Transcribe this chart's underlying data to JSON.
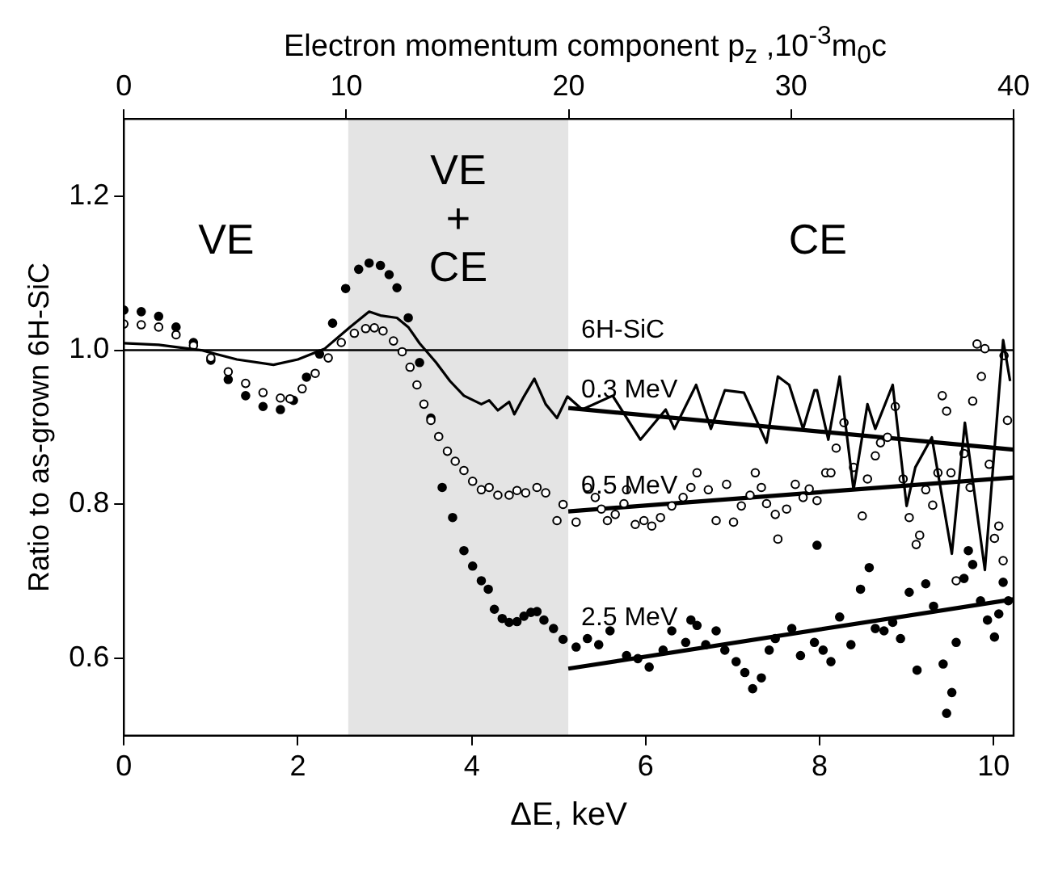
{
  "chart_data": {
    "type": "scatter",
    "xlabel": "ΔE, keV",
    "ylabel": "Ratio to as-grown 6H-SiC",
    "x2label": "Electron momentum component p$_{z}$ ,10$^{-3}$m$_{0}$c",
    "xlim": [
      0,
      10.23
    ],
    "xticks": [
      0,
      2,
      4,
      6,
      8,
      10
    ],
    "x2lim": [
      0,
      40
    ],
    "x2ticks": [
      0,
      10,
      20,
      30,
      40
    ],
    "ylim": [
      0.5,
      1.3
    ],
    "yticks": [
      {
        "value": 0.6,
        "label": "0.6"
      },
      {
        "value": 0.8,
        "label": "0.8"
      },
      {
        "value": 1.0,
        "label": "1.0"
      },
      {
        "value": 1.2,
        "label": "1.2"
      }
    ],
    "grid": false,
    "legend": false,
    "annotations": [
      "VE",
      "CE"
    ],
    "bands": [
      {
        "axis": "x",
        "from": 2.58,
        "to": 5.11,
        "label": "VE + CE",
        "color": "#e4e4e4"
      }
    ],
    "ref_lines": [
      {
        "axis": "y",
        "value": 1.0,
        "label": "6H-SiC",
        "color": "#000000"
      }
    ],
    "series": [
      {
        "name": "0.3 MeV",
        "type": "line",
        "marker": "none",
        "color": "#000000",
        "x": [
          0,
          0.4,
          0.89,
          1.3,
          1.72,
          2.0,
          2.31,
          2.6,
          2.82,
          2.95,
          3.14,
          3.27,
          3.4,
          3.59,
          3.75,
          3.91,
          4.11,
          4.2,
          4.3,
          4.43,
          4.49,
          4.6,
          4.72,
          4.85,
          4.98,
          5.1,
          5.27,
          5.62,
          5.94,
          6.23,
          6.33,
          6.58,
          6.75,
          6.91,
          7.13,
          7.39,
          7.52,
          7.65,
          7.81,
          7.94,
          7.97,
          8.1,
          8.23,
          8.39,
          8.55,
          8.64,
          8.84,
          9.0,
          9.1,
          9.29,
          9.52,
          9.67,
          9.9,
          10.11,
          10.19
        ],
        "values": [
          1.009,
          1.007,
          1.0,
          0.988,
          0.981,
          0.988,
          1.002,
          1.03,
          1.05,
          1.045,
          1.042,
          1.03,
          1.009,
          0.984,
          0.96,
          0.941,
          0.93,
          0.935,
          0.922,
          0.933,
          0.917,
          0.94,
          0.963,
          0.93,
          0.912,
          0.94,
          0.923,
          0.941,
          0.884,
          0.923,
          0.898,
          0.955,
          0.898,
          0.948,
          0.945,
          0.88,
          0.966,
          0.955,
          0.898,
          0.948,
          0.948,
          0.884,
          0.966,
          0.819,
          0.93,
          0.898,
          0.955,
          0.798,
          0.848,
          0.887,
          0.736,
          0.906,
          0.715,
          1.013,
          0.96
        ]
      },
      {
        "name": "0.5 MeV",
        "marker": "circle",
        "color": "#000000",
        "x": [
          0,
          0.2,
          0.4,
          0.6,
          0.8,
          1.0,
          1.2,
          1.4,
          1.6,
          1.8,
          1.91,
          2.05,
          2.2,
          2.35,
          2.5,
          2.65,
          2.78,
          2.88,
          2.98,
          3.1,
          3.2,
          3.29,
          3.37,
          3.45,
          3.53,
          3.62,
          3.72,
          3.81,
          3.91,
          4.01,
          4.11,
          4.2,
          4.3,
          4.43,
          4.52,
          4.62,
          4.75,
          4.85,
          4.98,
          5.05,
          5.2,
          5.33,
          5.42,
          5.49,
          5.56,
          5.65,
          5.75,
          5.78,
          5.88,
          5.98,
          6.07,
          6.17,
          6.3,
          6.43,
          6.52,
          6.59,
          6.72,
          6.81,
          6.93,
          7.01,
          7.1,
          7.2,
          7.26,
          7.33,
          7.39,
          7.49,
          7.52,
          7.62,
          7.72,
          7.81,
          7.88,
          7.97,
          8.07,
          8.13,
          8.19,
          8.28,
          8.39,
          8.49,
          8.55,
          8.64,
          8.7,
          8.78,
          8.87,
          8.96,
          9.03,
          9.11,
          9.15,
          9.22,
          9.3,
          9.36,
          9.41,
          9.46,
          9.51,
          9.57,
          9.66,
          9.73,
          9.76,
          9.81,
          9.86,
          9.9,
          9.95,
          10.01,
          10.06,
          10.11,
          10.12,
          10.16
        ],
        "values": [
          1.034,
          1.033,
          1.03,
          1.02,
          1.006,
          0.99,
          0.972,
          0.957,
          0.945,
          0.938,
          0.937,
          0.95,
          0.97,
          0.99,
          1.01,
          1.022,
          1.028,
          1.029,
          1.025,
          1.012,
          0.998,
          0.978,
          0.955,
          0.93,
          0.909,
          0.888,
          0.869,
          0.856,
          0.844,
          0.83,
          0.819,
          0.822,
          0.812,
          0.812,
          0.818,
          0.815,
          0.822,
          0.815,
          0.779,
          0.8,
          0.777,
          0.822,
          0.809,
          0.794,
          0.779,
          0.787,
          0.801,
          0.819,
          0.774,
          0.779,
          0.772,
          0.783,
          0.798,
          0.809,
          0.822,
          0.841,
          0.819,
          0.779,
          0.826,
          0.777,
          0.798,
          0.812,
          0.841,
          0.822,
          0.801,
          0.787,
          0.755,
          0.794,
          0.826,
          0.809,
          0.82,
          0.805,
          0.841,
          0.841,
          0.873,
          0.906,
          0.848,
          0.785,
          0.833,
          0.863,
          0.88,
          0.887,
          0.927,
          0.833,
          0.783,
          0.748,
          0.76,
          0.819,
          0.799,
          0.841,
          0.941,
          0.921,
          0.841,
          0.701,
          0.866,
          0.822,
          0.934,
          1.008,
          0.966,
          1.002,
          0.852,
          0.756,
          0.772,
          0.727,
          0.993,
          0.909
        ]
      },
      {
        "name": "2.5 MeV",
        "marker": "circle",
        "color": "#000000",
        "x": [
          0,
          0.2,
          0.4,
          0.6,
          0.8,
          1.0,
          1.2,
          1.4,
          1.6,
          1.8,
          1.95,
          2.1,
          2.25,
          2.4,
          2.55,
          2.7,
          2.82,
          2.95,
          3.05,
          3.14,
          3.27,
          3.4,
          3.53,
          3.66,
          3.78,
          3.91,
          4.01,
          4.11,
          4.19,
          4.26,
          4.35,
          4.43,
          4.52,
          4.6,
          4.68,
          4.75,
          4.83,
          4.94,
          5.05,
          5.2,
          5.33,
          5.46,
          5.59,
          5.78,
          5.91,
          6.04,
          6.2,
          6.3,
          6.46,
          6.52,
          6.59,
          6.69,
          6.81,
          6.91,
          7.04,
          7.14,
          7.23,
          7.33,
          7.42,
          7.49,
          7.68,
          7.78,
          7.94,
          7.97,
          8.04,
          8.13,
          8.23,
          8.36,
          8.47,
          8.57,
          8.64,
          8.74,
          8.84,
          8.93,
          9.03,
          9.12,
          9.22,
          9.31,
          9.42,
          9.46,
          9.52,
          9.57,
          9.66,
          9.71,
          9.76,
          9.85,
          9.93,
          10.01,
          10.06,
          10.11,
          10.17
        ],
        "values": [
          1.052,
          1.05,
          1.044,
          1.03,
          1.01,
          0.987,
          0.962,
          0.941,
          0.927,
          0.923,
          0.935,
          0.965,
          0.995,
          1.035,
          1.08,
          1.105,
          1.113,
          1.11,
          1.098,
          1.081,
          1.042,
          0.984,
          0.912,
          0.822,
          0.783,
          0.74,
          0.72,
          0.701,
          0.69,
          0.664,
          0.652,
          0.647,
          0.648,
          0.655,
          0.66,
          0.661,
          0.65,
          0.639,
          0.625,
          0.615,
          0.626,
          0.618,
          0.636,
          0.604,
          0.6,
          0.589,
          0.611,
          0.636,
          0.621,
          0.65,
          0.643,
          0.618,
          0.636,
          0.611,
          0.596,
          0.582,
          0.561,
          0.575,
          0.611,
          0.626,
          0.639,
          0.604,
          0.621,
          0.747,
          0.611,
          0.596,
          0.654,
          0.618,
          0.69,
          0.718,
          0.639,
          0.636,
          0.647,
          0.626,
          0.686,
          0.585,
          0.697,
          0.668,
          0.593,
          0.529,
          0.556,
          0.621,
          0.704,
          0.74,
          0.722,
          0.675,
          0.65,
          0.628,
          0.658,
          0.699,
          0.675
        ]
      },
      {
        "type": "line",
        "marker": "none",
        "color": "#000000",
        "x": [
          5.11,
          10.23
        ],
        "values": [
          0.925,
          0.871
        ]
      },
      {
        "type": "line",
        "marker": "none",
        "color": "#000000",
        "x": [
          5.11,
          10.23
        ],
        "values": [
          0.791,
          0.835
        ]
      },
      {
        "type": "line",
        "marker": "none",
        "color": "#000000",
        "x": [
          5.11,
          10.23
        ],
        "values": [
          0.587,
          0.677
        ]
      }
    ]
  }
}
